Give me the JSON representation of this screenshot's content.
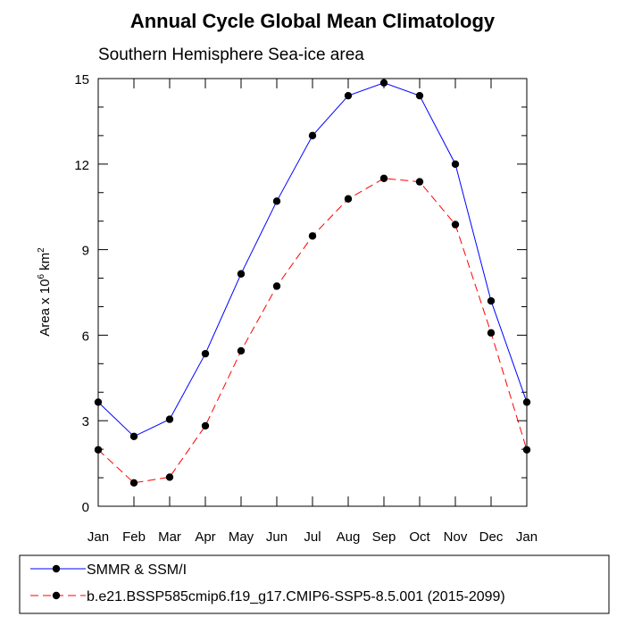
{
  "chart_data": {
    "type": "line",
    "title": "Annual Cycle Global Mean Climatology",
    "subtitle": "Southern Hemisphere Sea-ice area",
    "ylabel": "Area x 10",
    "ylabel_exp": "6",
    "ylabel_unit": " km",
    "ylabel_unit_exp": "2",
    "xlabel": "",
    "categories": [
      "Jan",
      "Feb",
      "Mar",
      "Apr",
      "May",
      "Jun",
      "Jul",
      "Aug",
      "Sep",
      "Oct",
      "Nov",
      "Dec",
      "Jan"
    ],
    "ylim": [
      0,
      15
    ],
    "yticks": [
      0,
      3,
      6,
      9,
      12,
      15
    ],
    "series": [
      {
        "name": "SMMR & SSM/I",
        "color": "#0000ff",
        "dash": "solid",
        "values": [
          3.65,
          2.45,
          3.05,
          5.35,
          8.15,
          10.7,
          13.0,
          14.4,
          14.85,
          14.4,
          12.0,
          7.2,
          3.65
        ]
      },
      {
        "name": "b.e21.BSSP585cmip6.f19_g17.CMIP6-SSP5-8.5.001 (2015-2099)",
        "color": "#ff0000",
        "dash": "dashed",
        "values": [
          1.98,
          0.82,
          1.02,
          2.82,
          5.45,
          7.72,
          9.48,
          10.78,
          11.5,
          11.38,
          9.88,
          6.08,
          1.98
        ]
      }
    ],
    "legend_position": "bottom",
    "grid": false
  }
}
